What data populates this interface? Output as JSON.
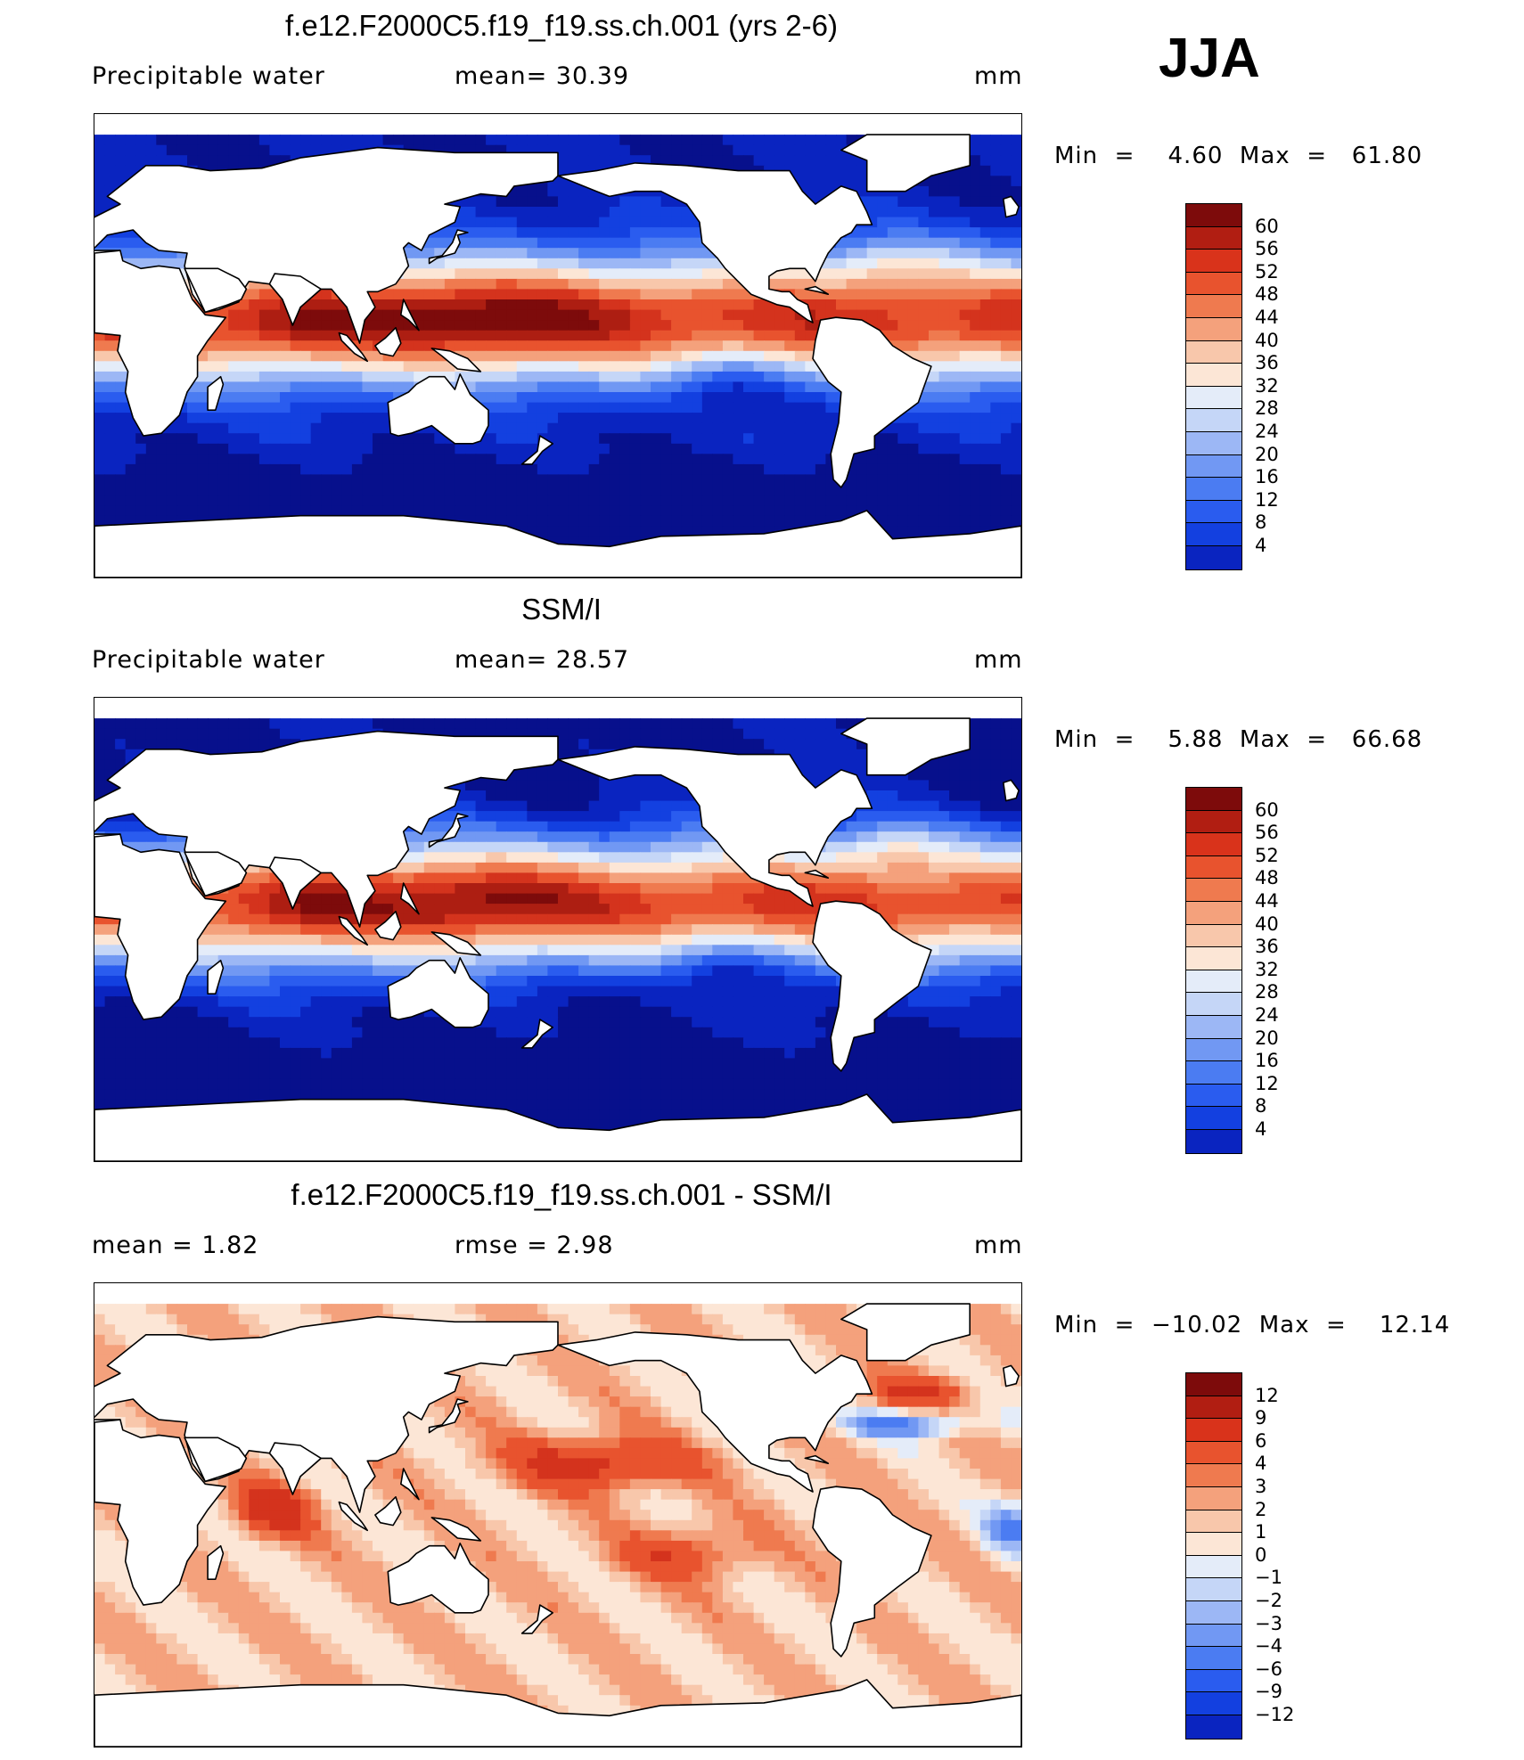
{
  "season": "JJA",
  "colors": {
    "continuous": [
      "#07108c",
      "#0a24c0",
      "#1340e0",
      "#2a5cef",
      "#4b7cf2",
      "#7198f3",
      "#9cb7f5",
      "#c5d6f7",
      "#e4ecf9",
      "#fce6d6",
      "#f8c7ab",
      "#f4a17c",
      "#ef7a4f",
      "#e8532e",
      "#d4331d",
      "#ad1e12",
      "#7d0b0b"
    ],
    "land": "#ffffff",
    "coast": "#000000"
  },
  "colorbar_full": {
    "ticks": [
      "60",
      "56",
      "52",
      "48",
      "44",
      "40",
      "36",
      "32",
      "28",
      "24",
      "20",
      "16",
      "12",
      "8",
      "4"
    ],
    "colors": [
      "#7d0b0b",
      "#b11e12",
      "#d9331b",
      "#e8532e",
      "#ef7a4f",
      "#f4a17c",
      "#f8c7ab",
      "#fce6d6",
      "#e4ecf9",
      "#c5d6f7",
      "#9cb7f5",
      "#7198f3",
      "#4b7cf2",
      "#2a5cef",
      "#1340e0",
      "#0a24c0"
    ]
  },
  "colorbar_diff": {
    "ticks": [
      "12",
      "9",
      "6",
      "4",
      "3",
      "2",
      "1",
      "0",
      "−1",
      "−2",
      "−3",
      "−4",
      "−6",
      "−9",
      "−12"
    ],
    "colors": [
      "#7d0b0b",
      "#b11e12",
      "#d9331b",
      "#e8532e",
      "#ef7a4f",
      "#f4a17c",
      "#f8c7ab",
      "#fce6d6",
      "#e4ecf9",
      "#c5d6f7",
      "#9cb7f5",
      "#7198f3",
      "#4b7cf2",
      "#2a5cef",
      "#1340e0",
      "#0a24c0"
    ]
  },
  "panels": [
    {
      "title": "f.e12.F2000C5.f19_f19.ss.ch.001 (yrs 2-6)",
      "left_label": "Precipitable  water",
      "mid_label": "mean=   30.39",
      "units": "mm",
      "minmax": "Min  =    4.60  Max  =   61.80"
    },
    {
      "title": "SSM/I",
      "left_label": "Precipitable  water",
      "mid_label": "mean=   28.57",
      "units": "mm",
      "minmax": "Min  =    5.88  Max  =   66.68"
    },
    {
      "title": "f.e12.F2000C5.f19_f19.ss.ch.001 - SSM/I",
      "left_label": "mean  =      1.82",
      "mid_label": "rmse  =     2.98",
      "units": "mm",
      "minmax": "Min  =  −10.02  Max  =    12.14"
    }
  ]
}
